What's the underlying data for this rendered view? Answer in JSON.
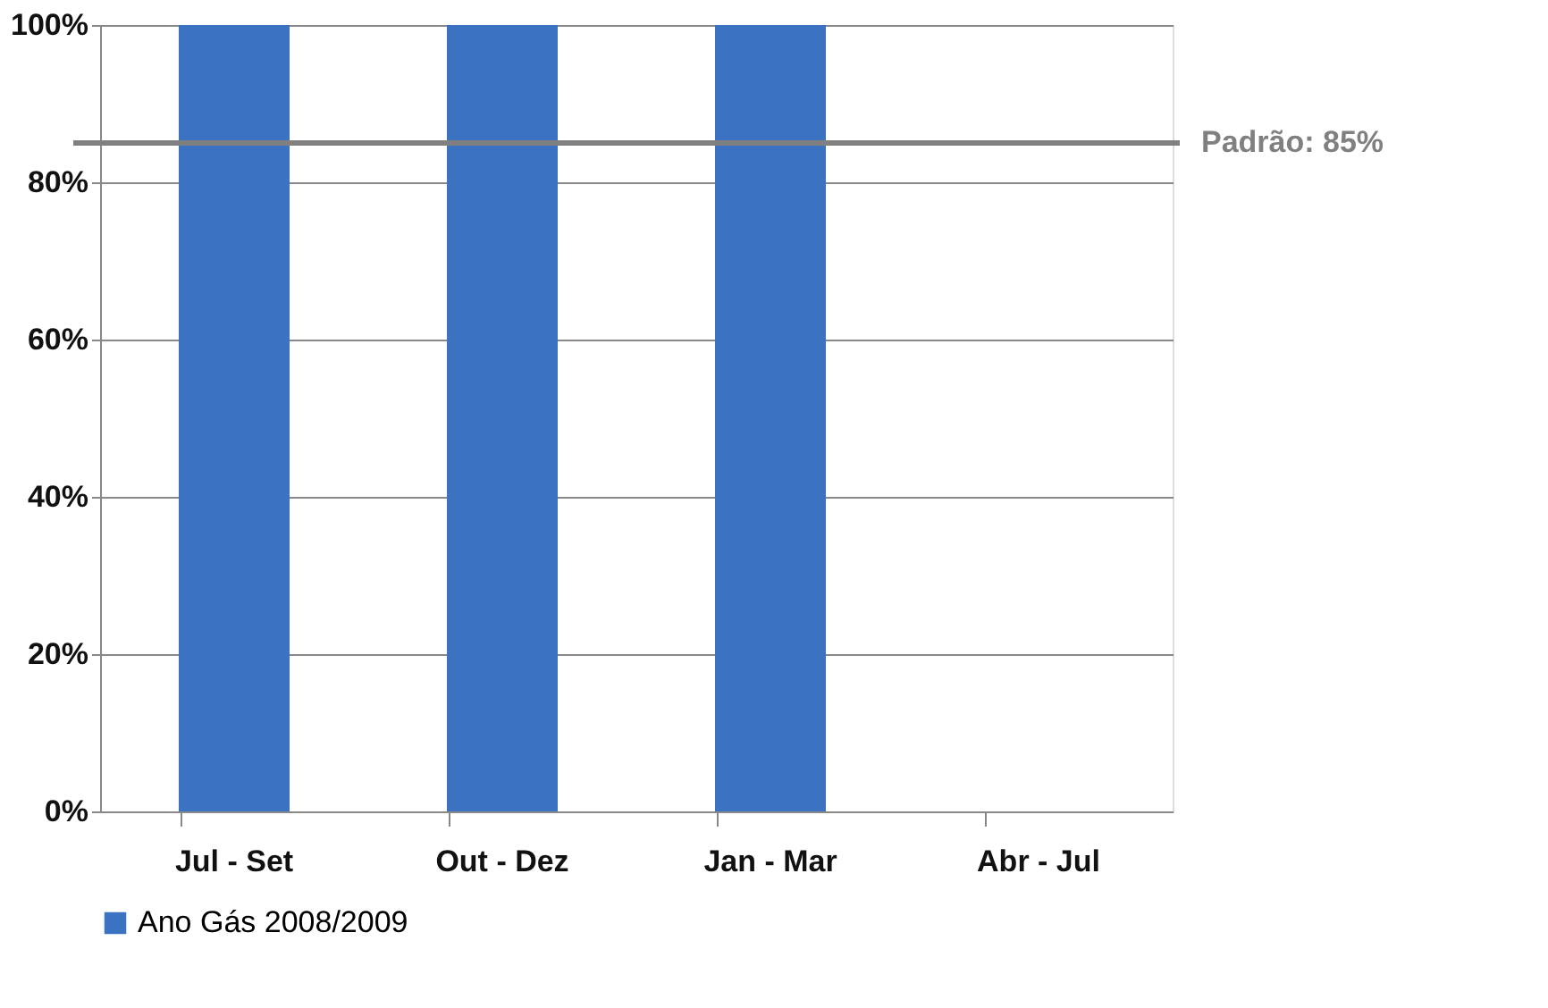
{
  "chart_data": {
    "type": "bar",
    "categories": [
      "Jul - Set",
      "Out - Dez",
      "Jan - Mar",
      "Abr - Jul"
    ],
    "series": [
      {
        "name": "Ano Gás 2008/2009",
        "color": "#3b73c2",
        "values": [
          100,
          100,
          100,
          null
        ]
      }
    ],
    "ylim": [
      0,
      100
    ],
    "yticks": [
      {
        "value": 0,
        "label": "0%"
      },
      {
        "value": 20,
        "label": "20%"
      },
      {
        "value": 40,
        "label": "40%"
      },
      {
        "value": 60,
        "label": "60%"
      },
      {
        "value": 80,
        "label": "80%"
      },
      {
        "value": 100,
        "label": "100%"
      }
    ],
    "ref_lines": [
      {
        "axis": "y",
        "value": 85,
        "label": "Padrão: 85%",
        "color": "#808080"
      }
    ],
    "grid": "y",
    "legend": "bottom"
  }
}
